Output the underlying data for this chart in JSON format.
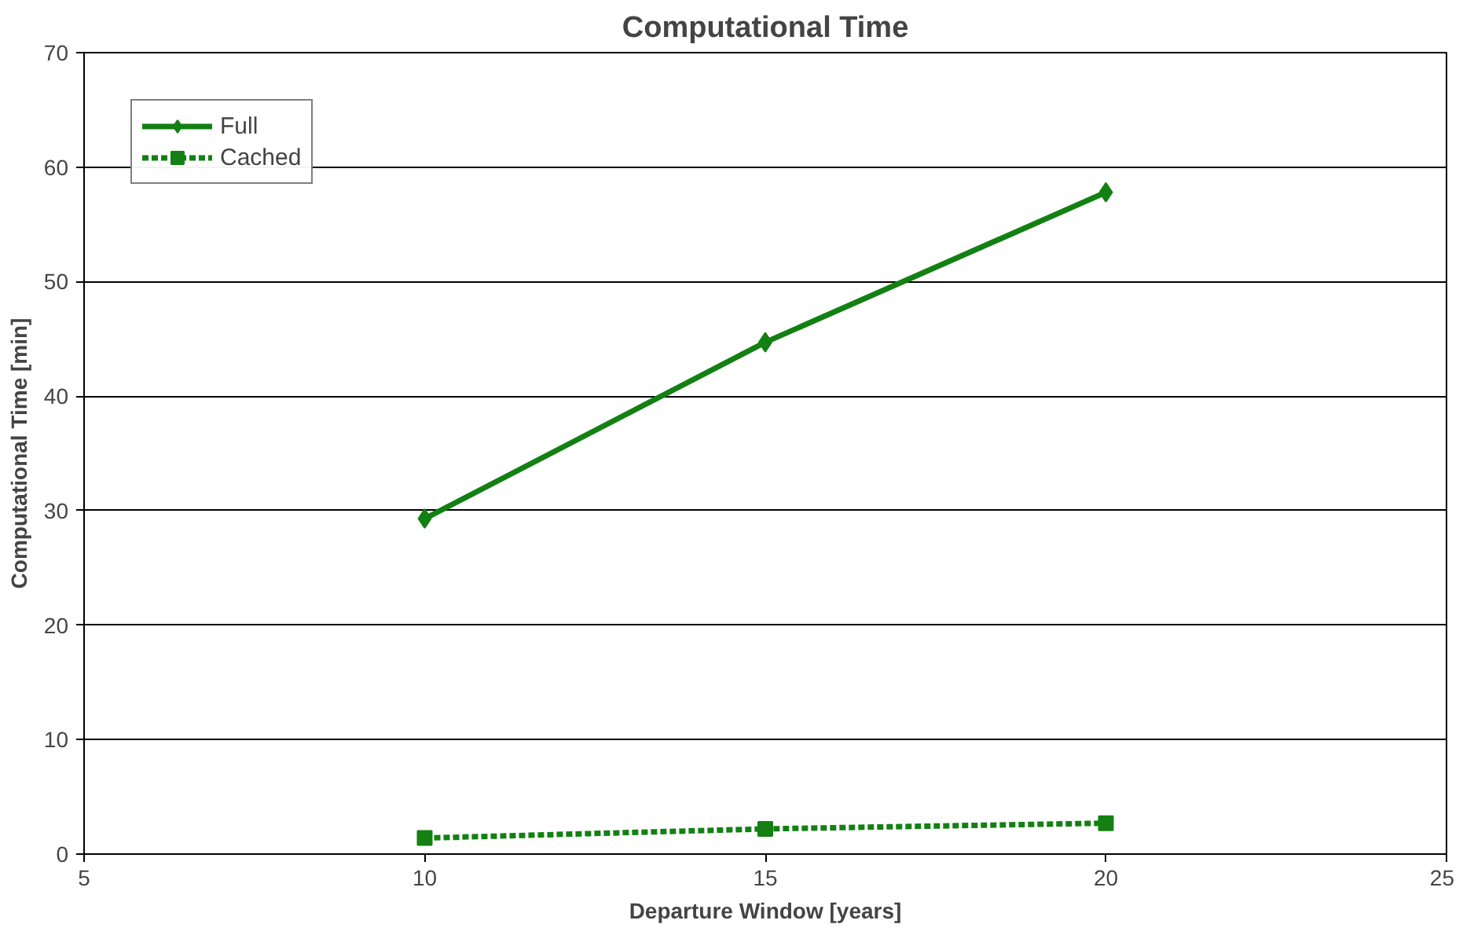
{
  "chart_data": {
    "type": "line",
    "title": "Computational Time",
    "xlabel": "Departure Window [years]",
    "ylabel": "Computational Time [min]",
    "x": [
      10,
      15,
      20
    ],
    "series": [
      {
        "name": "Full",
        "color": "#138013",
        "values": [
          29.3,
          44.7,
          57.8
        ],
        "marker": "diamond",
        "line_style": "solid"
      },
      {
        "name": "Cached",
        "color": "#138013",
        "values": [
          1.4,
          2.2,
          2.7
        ],
        "marker": "square",
        "line_style": "dotted"
      }
    ],
    "xlim": [
      5,
      25
    ],
    "xticks": [
      5,
      10,
      15,
      20,
      25
    ],
    "ylim": [
      0,
      70
    ],
    "yticks": [
      0,
      10,
      20,
      30,
      40,
      50,
      60,
      70
    ],
    "grid": "y",
    "legend": "top left"
  }
}
